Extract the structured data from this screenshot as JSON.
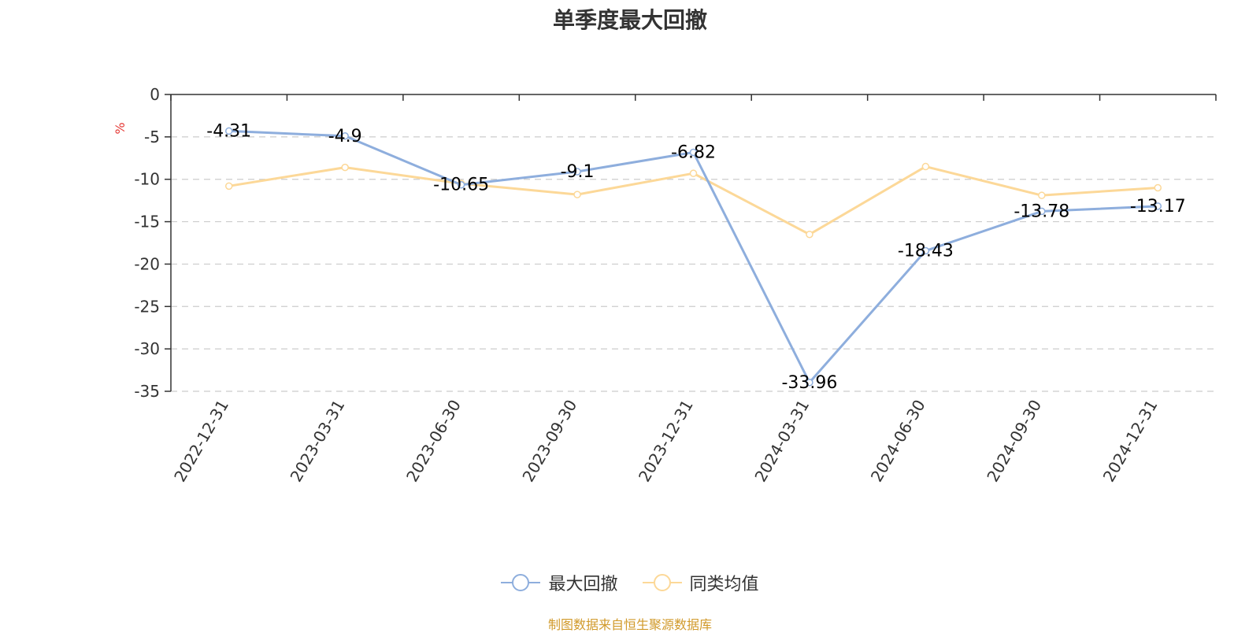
{
  "title": "单季度最大回撤",
  "source": "制图数据来自恒生聚源数据库",
  "colors": {
    "series1": "#8eaedd",
    "series2": "#fcd898",
    "unit": "#e53935",
    "axis": "#333333",
    "grid": "#cccccc"
  },
  "chart_data": {
    "type": "line",
    "ylabel": "%",
    "ylim": [
      -35,
      0
    ],
    "yticks": [
      0,
      -5,
      -10,
      -15,
      -20,
      -25,
      -30,
      -35
    ],
    "categories": [
      "2022-12-31",
      "2023-03-31",
      "2023-06-30",
      "2023-09-30",
      "2023-12-31",
      "2024-03-31",
      "2024-06-30",
      "2024-09-30",
      "2024-12-31"
    ],
    "grid": "horizontal dashed",
    "legend_position": "bottom",
    "series": [
      {
        "name": "最大回撤",
        "values": [
          -4.31,
          -4.9,
          -10.65,
          -9.1,
          -6.82,
          -33.96,
          -18.43,
          -13.78,
          -13.17
        ],
        "labels": [
          "-4.31",
          "-4.9",
          "-10.65",
          "-9.1",
          "-6.82",
          "-33.96",
          "-18.43",
          "-13.78",
          "-13.17"
        ]
      },
      {
        "name": "同类均值",
        "values": [
          -10.8,
          -8.6,
          -10.5,
          -11.8,
          -9.3,
          -16.5,
          -8.5,
          -11.9,
          -11.0
        ]
      }
    ]
  }
}
